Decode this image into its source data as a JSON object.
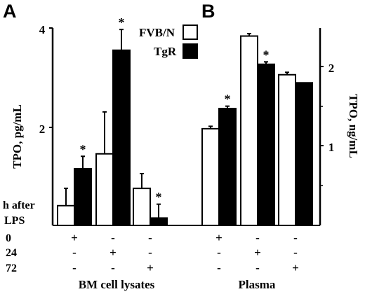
{
  "chart_data": [
    {
      "panel": "A",
      "type": "bar",
      "group_label": "BM cell lysates",
      "ylabel": "TPO, pg/mL",
      "ylim": [
        0,
        4
      ],
      "yticks": [
        2,
        4
      ],
      "categories": [
        "0 h",
        "24 h",
        "72 h"
      ],
      "series": [
        {
          "name": "FVB/N",
          "values": [
            0.4,
            1.45,
            0.75
          ],
          "errors": [
            0.35,
            0.85,
            0.3
          ]
        },
        {
          "name": "TgR",
          "values": [
            1.15,
            3.55,
            0.15
          ],
          "errors": [
            0.25,
            0.42,
            0.28
          ]
        }
      ],
      "significant": [
        true,
        true,
        true
      ]
    },
    {
      "panel": "B",
      "type": "bar",
      "group_label": "Plasma",
      "ylabel": "TPO, ng/mL",
      "ylim": [
        0,
        2.45
      ],
      "yticks": [
        1,
        2
      ],
      "categories": [
        "0 h",
        "24 h",
        "72 h"
      ],
      "series": [
        {
          "name": "FVB/N",
          "values": [
            1.2,
            2.35,
            1.87
          ],
          "errors": [
            0.03,
            0.03,
            0.03
          ]
        },
        {
          "name": "TgR",
          "values": [
            1.45,
            2.0,
            1.77
          ],
          "errors": [
            0.03,
            0.03,
            0.0
          ]
        }
      ],
      "significant": [
        true,
        true,
        false
      ]
    }
  ],
  "legend": [
    {
      "label": "FVB/N",
      "fill": "#ffffff"
    },
    {
      "label": "TgR",
      "fill": "#000000"
    }
  ],
  "conditions": {
    "header_line1": "h after",
    "header_line2": "LPS",
    "rows": [
      {
        "label": "0",
        "marks": [
          "+",
          "-",
          "-"
        ]
      },
      {
        "label": "24",
        "marks": [
          "-",
          "+",
          "-"
        ]
      },
      {
        "label": "72",
        "marks": [
          "-",
          "-",
          "+"
        ]
      }
    ]
  },
  "significance_mark": "*",
  "colors": {
    "bar_fill_fvbn": "#ffffff",
    "bar_fill_tgr": "#000000",
    "stroke": "#000000"
  }
}
